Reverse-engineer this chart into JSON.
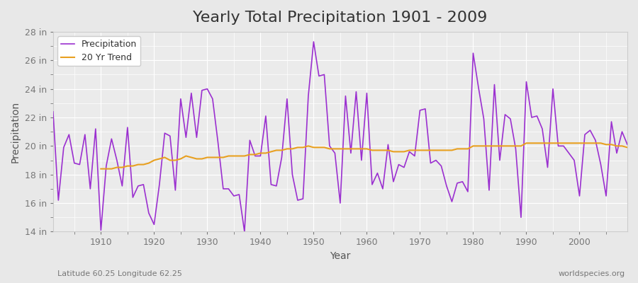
{
  "title": "Yearly Total Precipitation 1901 - 2009",
  "xlabel": "Year",
  "ylabel": "Precipitation",
  "x_label_bottom_left": "Latitude 60.25 Longitude 62.25",
  "x_label_bottom_right": "worldspecies.org",
  "background_color": "#e8e8e8",
  "plot_bg_color": "#ebebeb",
  "grid_color": "#ffffff",
  "precip_color": "#9b30d0",
  "trend_color": "#e8a020",
  "years": [
    1901,
    1902,
    1903,
    1904,
    1905,
    1906,
    1907,
    1908,
    1909,
    1910,
    1911,
    1912,
    1913,
    1914,
    1915,
    1916,
    1917,
    1918,
    1919,
    1920,
    1921,
    1922,
    1923,
    1924,
    1925,
    1926,
    1927,
    1928,
    1929,
    1930,
    1931,
    1932,
    1933,
    1934,
    1935,
    1936,
    1937,
    1938,
    1939,
    1940,
    1941,
    1942,
    1943,
    1944,
    1945,
    1946,
    1947,
    1948,
    1949,
    1950,
    1951,
    1952,
    1953,
    1954,
    1955,
    1956,
    1957,
    1958,
    1959,
    1960,
    1961,
    1962,
    1963,
    1964,
    1965,
    1966,
    1967,
    1968,
    1969,
    1970,
    1971,
    1972,
    1973,
    1974,
    1975,
    1976,
    1977,
    1978,
    1979,
    1980,
    1981,
    1982,
    1983,
    1984,
    1985,
    1986,
    1987,
    1988,
    1989,
    1990,
    1991,
    1992,
    1993,
    1994,
    1995,
    1996,
    1997,
    1998,
    1999,
    2000,
    2001,
    2002,
    2003,
    2004,
    2005,
    2006,
    2007,
    2008,
    2009
  ],
  "precip": [
    22.4,
    16.2,
    19.9,
    20.8,
    18.8,
    18.7,
    20.8,
    17.0,
    21.2,
    14.1,
    18.6,
    20.5,
    19.0,
    17.2,
    21.3,
    16.4,
    17.2,
    17.3,
    15.3,
    14.5,
    17.3,
    20.9,
    20.7,
    16.9,
    23.3,
    20.6,
    23.7,
    20.6,
    23.9,
    24.0,
    23.3,
    20.3,
    17.0,
    17.0,
    16.5,
    16.6,
    14.0,
    20.4,
    19.3,
    19.3,
    22.1,
    17.3,
    17.2,
    19.2,
    23.3,
    18.0,
    16.2,
    16.3,
    23.5,
    27.3,
    24.9,
    25.0,
    20.0,
    19.5,
    16.0,
    23.5,
    19.5,
    23.8,
    19.0,
    23.7,
    17.3,
    18.1,
    17.0,
    20.1,
    17.5,
    18.7,
    18.5,
    19.6,
    19.3,
    22.5,
    22.6,
    18.8,
    19.0,
    18.6,
    17.2,
    16.1,
    17.4,
    17.5,
    16.8,
    26.5,
    24.1,
    21.9,
    16.9,
    24.3,
    19.0,
    22.2,
    21.9,
    19.8,
    15.0,
    24.5,
    22.0,
    22.1,
    21.2,
    18.5,
    24.0,
    20.0,
    20.0,
    19.5,
    19.0,
    16.5,
    20.8,
    21.1,
    20.4,
    18.7,
    16.5,
    21.7,
    19.5,
    21.0,
    20.1
  ],
  "trend_years": [
    1910,
    1911,
    1912,
    1913,
    1914,
    1915,
    1916,
    1917,
    1918,
    1919,
    1920,
    1921,
    1922,
    1923,
    1924,
    1925,
    1926,
    1927,
    1928,
    1929,
    1930,
    1931,
    1932,
    1933,
    1934,
    1935,
    1936,
    1937,
    1938,
    1939,
    1940,
    1941,
    1942,
    1943,
    1944,
    1945,
    1946,
    1947,
    1948,
    1949,
    1950,
    1951,
    1952,
    1953,
    1954,
    1955,
    1956,
    1957,
    1958,
    1959,
    1960,
    1961,
    1962,
    1963,
    1964,
    1965,
    1966,
    1967,
    1968,
    1969,
    1970,
    1971,
    1972,
    1973,
    1974,
    1975,
    1976,
    1977,
    1978,
    1979,
    1980,
    1981,
    1982,
    1983,
    1984,
    1985,
    1986,
    1987,
    1988,
    1989,
    1990,
    1991,
    1992,
    1993,
    1994,
    1995,
    1996,
    1997,
    1998,
    1999,
    2000,
    2001,
    2002,
    2003,
    2004,
    2005,
    2006,
    2007,
    2008,
    2009
  ],
  "trend": [
    18.4,
    18.4,
    18.4,
    18.5,
    18.5,
    18.6,
    18.6,
    18.7,
    18.7,
    18.8,
    19.0,
    19.1,
    19.2,
    19.0,
    19.0,
    19.1,
    19.3,
    19.2,
    19.1,
    19.1,
    19.2,
    19.2,
    19.2,
    19.2,
    19.3,
    19.3,
    19.3,
    19.3,
    19.4,
    19.4,
    19.5,
    19.5,
    19.6,
    19.7,
    19.7,
    19.8,
    19.8,
    19.9,
    19.9,
    20.0,
    19.9,
    19.9,
    19.9,
    19.8,
    19.8,
    19.8,
    19.8,
    19.8,
    19.8,
    19.8,
    19.8,
    19.7,
    19.7,
    19.7,
    19.7,
    19.6,
    19.6,
    19.6,
    19.7,
    19.7,
    19.7,
    19.7,
    19.7,
    19.7,
    19.7,
    19.7,
    19.7,
    19.8,
    19.8,
    19.8,
    20.0,
    20.0,
    20.0,
    20.0,
    20.0,
    20.0,
    20.0,
    20.0,
    20.0,
    20.0,
    20.2,
    20.2,
    20.2,
    20.2,
    20.2,
    20.2,
    20.2,
    20.2,
    20.2,
    20.2,
    20.2,
    20.2,
    20.2,
    20.2,
    20.2,
    20.1,
    20.1,
    20.0,
    20.0,
    19.9
  ],
  "ylim": [
    14,
    28
  ],
  "yticks": [
    14,
    16,
    18,
    20,
    22,
    24,
    26,
    28
  ],
  "xticks": [
    1910,
    1920,
    1930,
    1940,
    1950,
    1960,
    1970,
    1980,
    1990,
    2000
  ],
  "legend_labels": [
    "Precipitation",
    "20 Yr Trend"
  ],
  "title_fontsize": 16,
  "axis_label_fontsize": 10,
  "tick_fontsize": 9
}
